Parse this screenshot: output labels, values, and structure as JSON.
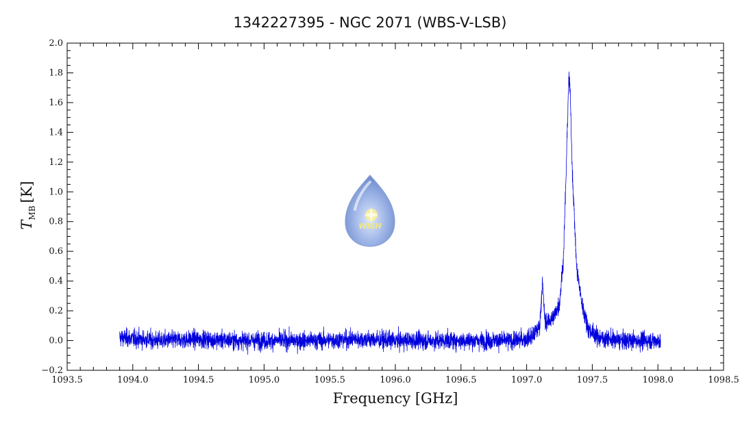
{
  "chart_data": {
    "type": "line",
    "title": "1342227395 - NGC 2071 (WBS-V-LSB)",
    "xlabel": "Frequency [GHz]",
    "ylabel": {
      "symbol": "T",
      "subscript": "MB",
      "unit": "[K]"
    },
    "xlim": [
      1093.5,
      1098.5
    ],
    "ylim": [
      -0.2,
      2.0
    ],
    "xticks": [
      "1093.5",
      "1094.0",
      "1094.5",
      "1095.0",
      "1095.5",
      "1096.0",
      "1096.5",
      "1097.0",
      "1097.5",
      "1098.0",
      "1098.5"
    ],
    "yticks": [
      "−0.2",
      "0.0",
      "0.2",
      "0.4",
      "0.6",
      "0.8",
      "1.0",
      "1.2",
      "1.4",
      "1.6",
      "1.8",
      "2.0"
    ],
    "grid": false,
    "line_color": "#0000dd",
    "series": [
      {
        "x": [
          1093.9,
          1094.2,
          1094.5,
          1094.8,
          1095.1,
          1095.4,
          1095.7,
          1096.0,
          1096.3,
          1096.6,
          1096.9,
          1097.0,
          1097.05,
          1097.1,
          1097.12,
          1097.14,
          1097.16,
          1097.2,
          1097.25,
          1097.28,
          1097.3,
          1097.32,
          1097.33,
          1097.35,
          1097.38,
          1097.42,
          1097.47,
          1097.55,
          1097.7,
          1097.9,
          1098.02
        ],
        "y": [
          0.02,
          0.0,
          0.01,
          0.0,
          0.0,
          0.0,
          0.01,
          0.0,
          0.0,
          0.0,
          0.0,
          0.01,
          0.03,
          0.1,
          0.4,
          0.12,
          0.13,
          0.15,
          0.25,
          0.55,
          1.1,
          1.75,
          1.7,
          1.1,
          0.5,
          0.25,
          0.08,
          0.02,
          0.0,
          0.0,
          0.0
        ],
        "noise_rms": 0.03
      }
    ],
    "logo": {
      "name": "wish-droplet-logo",
      "text": "WISH"
    }
  }
}
